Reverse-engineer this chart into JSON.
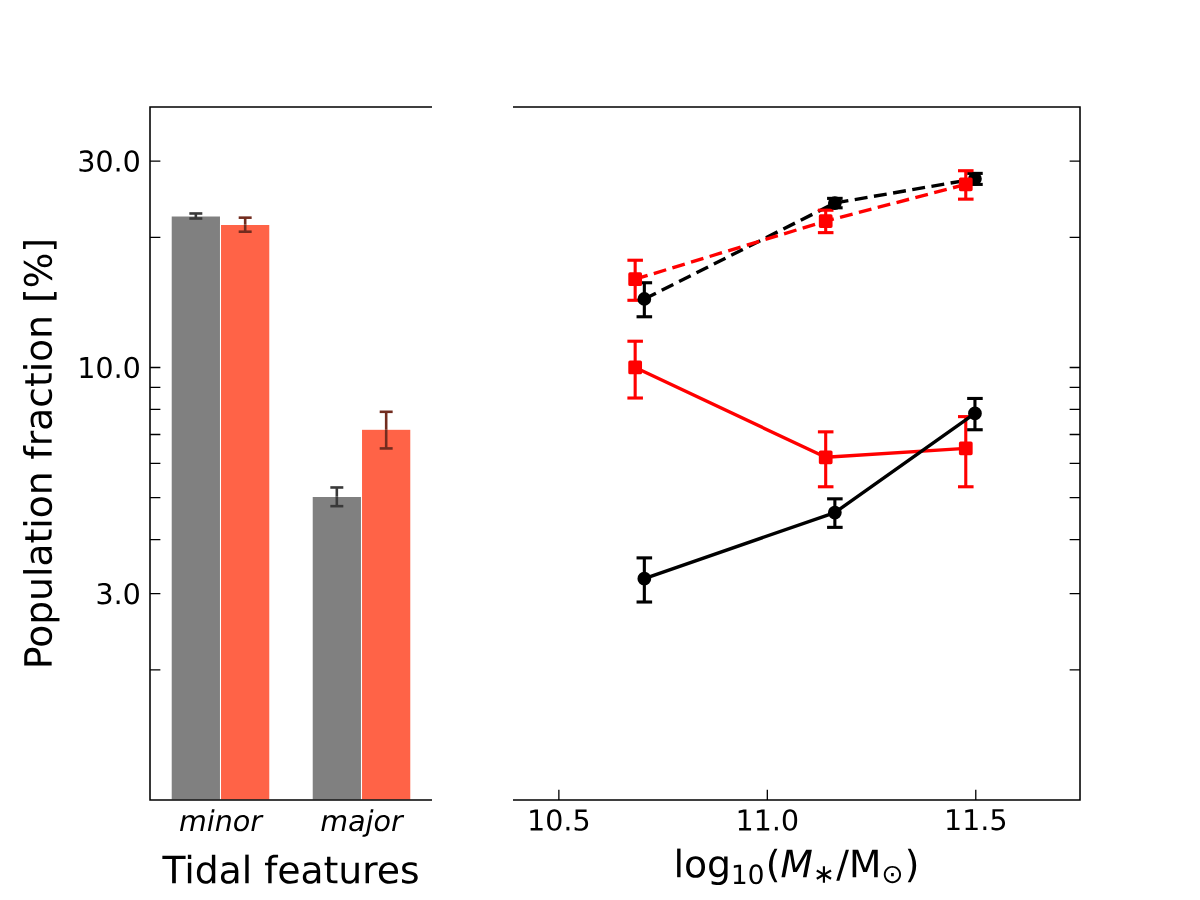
{
  "chart_data": [
    {
      "type": "bar",
      "xlabel": "Tidal features",
      "ylabel": "Population fraction [%]",
      "categories": [
        "minor",
        "major"
      ],
      "log": "y",
      "ylim": [
        1,
        40
      ],
      "yticks": [
        {
          "value": 2,
          "label": null
        },
        {
          "value": 3,
          "label": "3.0"
        },
        {
          "value": 4,
          "label": null
        },
        {
          "value": 5,
          "label": null
        },
        {
          "value": 6,
          "label": null
        },
        {
          "value": 7,
          "label": null
        },
        {
          "value": 8,
          "label": null
        },
        {
          "value": 9,
          "label": null
        },
        {
          "value": 10,
          "label": "10.0"
        },
        {
          "value": 20,
          "label": null
        },
        {
          "value": 30,
          "label": "30.0"
        }
      ],
      "series": [
        {
          "color": "#808080",
          "values": [
            22.4,
            5.03
          ],
          "errors": [
            0.3,
            0.25
          ]
        },
        {
          "color": "#ff6347",
          "values": [
            21.4,
            7.2
          ],
          "errors": [
            0.8,
            0.7
          ]
        }
      ]
    },
    {
      "type": "line",
      "xlabel": "log$_{10}$(*M*$_{∗}$/M$_{⊙}$)",
      "log": "y",
      "ylim": [
        1,
        40
      ],
      "xlim": [
        10.39,
        11.75
      ],
      "tick_labels": "x",
      "xticks": [
        10.5,
        {
          "value": 11,
          "label": "11.0"
        },
        11.5
      ],
      "yticks": [
        {
          "value": 2,
          "label": null
        },
        {
          "value": 3,
          "label": null
        },
        {
          "value": 4,
          "label": null
        },
        {
          "value": 5,
          "label": null
        },
        {
          "value": 6,
          "label": null
        },
        {
          "value": 7,
          "label": null
        },
        {
          "value": 8,
          "label": null
        },
        {
          "value": 9,
          "label": null
        },
        {
          "value": 10,
          "label": null
        },
        {
          "value": 20,
          "label": null
        },
        {
          "value": 30,
          "label": null
        }
      ],
      "series": [
        {
          "color": "#000000",
          "marker": "circle",
          "line_style": "dashed",
          "x": [
            10.705,
            11.162,
            11.498
          ],
          "values": [
            14.4,
            24.0,
            27.3
          ],
          "errors": [
            1.3,
            0.6,
            0.8
          ]
        },
        {
          "color": "#ff0000",
          "marker": "square",
          "line_style": "dashed",
          "x": [
            10.683,
            11.14,
            11.476
          ],
          "values": [
            16.0,
            21.8,
            26.5
          ],
          "errors": [
            1.7,
            1.3,
            2.0
          ]
        },
        {
          "color": "#ff0000",
          "marker": "square",
          "line_style": "solid",
          "x": [
            10.683,
            11.14,
            11.476
          ],
          "values": [
            10.0,
            6.2,
            6.5
          ],
          "errors": [
            1.5,
            0.9,
            1.2
          ]
        },
        {
          "color": "#000000",
          "marker": "circle",
          "line_style": "solid",
          "x": [
            10.705,
            11.162,
            11.498
          ],
          "values": [
            3.25,
            4.62,
            7.83
          ],
          "errors": [
            0.38,
            0.35,
            0.65
          ]
        }
      ]
    }
  ]
}
